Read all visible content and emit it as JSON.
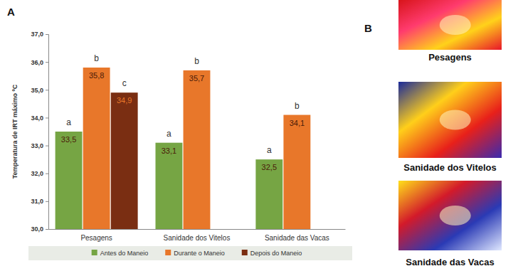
{
  "chart_data": {
    "type": "bar",
    "y_label": "Temperatura de IRT máximo ºC",
    "categories": [
      "Pesagens",
      "Sanidade dos Vitelos",
      "Sanidade das Vacas"
    ],
    "series": [
      {
        "name": "Antes do Maneio",
        "color": "#76a544",
        "values": [
          33.5,
          33.1,
          32.5
        ],
        "value_labels": [
          "33,5",
          "33,1",
          "32,5"
        ],
        "letters": [
          "a",
          "a",
          "a"
        ]
      },
      {
        "name": "Durante o Maneio",
        "color": "#e8772a",
        "values": [
          35.8,
          35.7,
          34.1
        ],
        "value_labels": [
          "35,8",
          "35,7",
          "34,1"
        ],
        "letters": [
          "b",
          "b",
          "b"
        ]
      },
      {
        "name": "Depois do Maneio",
        "color": "#7a2e12",
        "values": [
          34.9,
          null,
          null
        ],
        "value_labels": [
          "34,9",
          null,
          null
        ],
        "letters": [
          "c",
          null,
          null
        ]
      }
    ],
    "ylim": [
      30,
      37
    ],
    "yticks": [
      {
        "value": 30,
        "label": "30,0"
      },
      {
        "value": 31,
        "label": "31,0"
      },
      {
        "value": 32,
        "label": "32,0"
      },
      {
        "value": 33,
        "label": "33,0"
      },
      {
        "value": 34,
        "label": "34,0"
      },
      {
        "value": 35,
        "label": "35,0"
      },
      {
        "value": 36,
        "label": "36,0"
      },
      {
        "value": 37,
        "label": "37,0"
      }
    ],
    "grid": false,
    "data_labels": true,
    "legend": "bottom"
  },
  "panel_letters": {
    "chart": "A",
    "images": "B"
  },
  "thermal_images": {
    "captions": [
      "Pesagens",
      "Sanidade dos Vitelos",
      "Sanidade das Vacas"
    ]
  }
}
